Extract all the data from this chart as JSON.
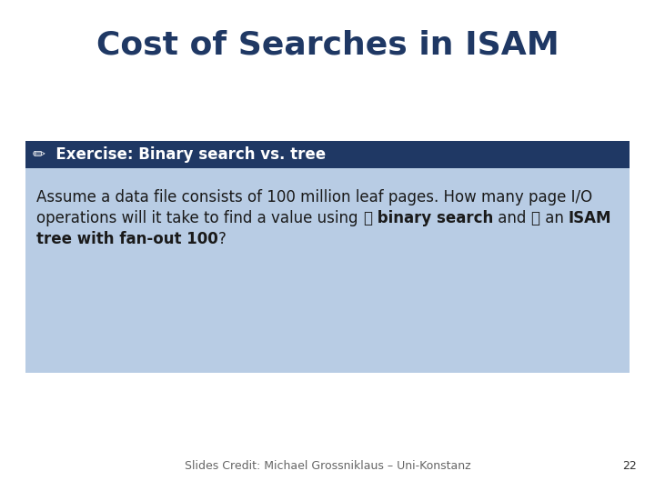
{
  "title": "Cost of Searches in ISAM",
  "title_color": "#1F3864",
  "title_fontsize": 26,
  "header_text": "✏  Exercise: Binary search vs. tree",
  "header_bg_color": "#1F3864",
  "header_text_color": "#FFFFFF",
  "header_fontsize": 12,
  "content_bg_color": "#B8CCE4",
  "content_fontsize": 12,
  "footer_text": "Slides Credit: Michael Grossniklaus – Uni-Konstanz",
  "footer_fontsize": 9,
  "page_number": "22",
  "bg_color": "#FFFFFF",
  "text_color": "#1a1a1a"
}
